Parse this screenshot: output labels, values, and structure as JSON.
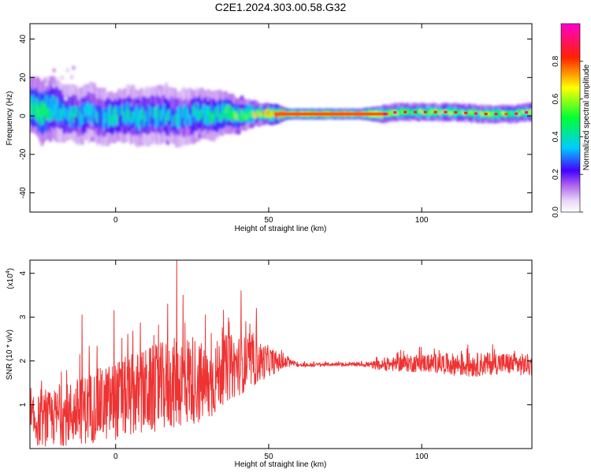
{
  "title": "C2E1.2024.303.00.58.G32",
  "chart_data": [
    {
      "type": "heatmap",
      "xlabel": "Height of straight line (km)",
      "ylabel": "Frequency (Hz)",
      "xlim": [
        -28,
        136
      ],
      "ylim": [
        -50,
        48
      ],
      "xticks": [
        0,
        50,
        100
      ],
      "yticks": [
        -40,
        -20,
        0,
        20,
        40
      ],
      "colorbar": {
        "label": "Normalized spectral amplitude",
        "range": [
          0,
          1
        ],
        "ticks": [
          "0.0",
          "0.2",
          "0.4",
          "0.6",
          "0.8"
        ],
        "tick_values": [
          0,
          0.2,
          0.4,
          0.6,
          0.8
        ]
      },
      "ridge": {
        "x": [
          -27,
          -24,
          -20,
          -16,
          -12,
          -8,
          -4,
          0,
          4,
          8,
          12,
          16,
          20,
          24,
          28,
          32,
          36,
          40,
          44,
          48,
          52,
          56,
          60,
          70,
          80,
          88,
          92,
          100,
          110,
          120,
          130,
          135
        ],
        "freq": [
          5,
          2,
          4,
          1,
          0,
          2,
          -1,
          0,
          1,
          -1,
          0,
          1,
          -1,
          0,
          1,
          0,
          2,
          0,
          1,
          1,
          1,
          1,
          1,
          1,
          1,
          1,
          2,
          2,
          2,
          1,
          1,
          2
        ],
        "spread": [
          8,
          9,
          9,
          8,
          8,
          8,
          8,
          7,
          8,
          8,
          8,
          8,
          8,
          8,
          7,
          7,
          6,
          5,
          4,
          3,
          3,
          1.5,
          1.5,
          1.5,
          1.5,
          2.5,
          2.5,
          2.5,
          2.5,
          2.5,
          2.5,
          2.5
        ],
        "amp": [
          0.45,
          0.5,
          0.4,
          0.35,
          0.35,
          0.35,
          0.35,
          0.4,
          0.35,
          0.35,
          0.35,
          0.35,
          0.35,
          0.35,
          0.4,
          0.4,
          0.45,
          0.5,
          0.55,
          0.65,
          0.75,
          0.9,
          0.9,
          0.9,
          0.9,
          0.6,
          0.55,
          0.55,
          0.55,
          0.55,
          0.55,
          0.55
        ]
      }
    },
    {
      "type": "line",
      "xlabel": "Height of straight line (km)",
      "ylabel": "SNR (10 * v/v)",
      "scale_note": "(x10",
      "scale_exp": "4",
      "xlim": [
        -28,
        136
      ],
      "ylim": [
        0,
        4.3
      ],
      "xticks": [
        0,
        50,
        100
      ],
      "yticks": [
        1,
        2,
        3,
        4
      ],
      "color": "#ee3333",
      "envelope": {
        "x": [
          -28,
          -20,
          -10,
          0,
          10,
          20,
          25,
          30,
          35,
          40,
          45,
          50,
          55,
          58,
          60,
          70,
          80,
          87,
          95,
          105,
          115,
          125,
          136
        ],
        "mean": [
          0.6,
          0.7,
          0.9,
          1.1,
          1.3,
          1.5,
          1.6,
          1.4,
          1.8,
          1.9,
          1.95,
          2.0,
          1.95,
          1.95,
          1.9,
          1.92,
          1.92,
          1.9,
          1.95,
          1.95,
          1.9,
          1.95,
          1.9
        ],
        "amp": [
          0.55,
          0.65,
          0.8,
          0.9,
          1.0,
          1.05,
          1.05,
          0.9,
          0.8,
          0.7,
          0.55,
          0.35,
          0.15,
          0.06,
          0.05,
          0.04,
          0.04,
          0.12,
          0.2,
          0.22,
          0.28,
          0.25,
          0.25
        ]
      },
      "peaks": [
        {
          "x": 20,
          "y": 4.3
        },
        {
          "x": 41,
          "y": 3.6
        },
        {
          "x": 17,
          "y": 3.3
        },
        {
          "x": 22,
          "y": 3.5
        },
        {
          "x": -11,
          "y": 3.05
        },
        {
          "x": -0.5,
          "y": 3.15
        },
        {
          "x": 46,
          "y": 3.2
        }
      ]
    }
  ]
}
